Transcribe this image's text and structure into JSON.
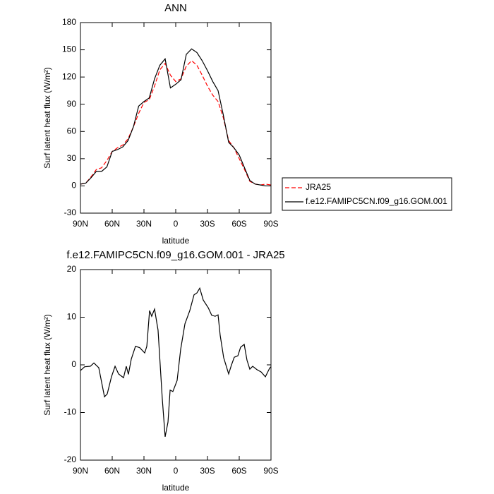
{
  "chart_data": [
    {
      "type": "line",
      "title": "ANN",
      "x_label": "latitude",
      "y_label": "Surf latent heat flux (W/m²)",
      "x": [
        90,
        85,
        80,
        75,
        70,
        65,
        60,
        55,
        50,
        45,
        40,
        35,
        30,
        25,
        20,
        15,
        10,
        5,
        0,
        -5,
        -10,
        -15,
        -20,
        -25,
        -30,
        -35,
        -40,
        -45,
        -50,
        -55,
        -60,
        -65,
        -70,
        -75,
        -80,
        -85,
        -90
      ],
      "series": [
        {
          "name": "JRA25",
          "color": "#ff0000",
          "line_style": "dashed",
          "values": [
            2,
            3,
            10,
            18,
            20,
            28,
            38,
            42,
            45,
            52,
            65,
            80,
            92,
            95,
            110,
            128,
            135,
            122,
            115,
            118,
            132,
            138,
            133,
            122,
            110,
            100,
            93,
            75,
            50,
            42,
            30,
            18,
            5,
            2,
            1,
            2,
            1
          ]
        },
        {
          "name": "f.e12.FAMIPC5CN.f09_g16.GOM.001",
          "color": "#000000",
          "line_style": "solid",
          "values": [
            2,
            3,
            9,
            16,
            16,
            21,
            38,
            40,
            43,
            50,
            65,
            88,
            93,
            97,
            118,
            133,
            140,
            108,
            112,
            117,
            145,
            151,
            147,
            138,
            127,
            115,
            105,
            78,
            48,
            42,
            34,
            20,
            6,
            2,
            1,
            0,
            0
          ]
        }
      ],
      "xlim": [
        90,
        -90
      ],
      "xticks": [
        {
          "value": 90,
          "label": "90N"
        },
        {
          "value": 60,
          "label": "60N"
        },
        {
          "value": 30,
          "label": "30N"
        },
        0,
        {
          "value": -30,
          "label": "30S"
        },
        {
          "value": -60,
          "label": "60S"
        },
        {
          "value": -90,
          "label": "90S"
        }
      ],
      "ylim": [
        -30,
        180
      ],
      "yticks": [
        -30,
        0,
        30,
        60,
        90,
        120,
        150,
        180
      ]
    },
    {
      "type": "line",
      "title": "f.e12.FAMIPC5CN.f09_g16.GOM.001 - JRA25",
      "x_label": "latitude",
      "y_label": "Surf latent heat flux (W/m²)",
      "x": [
        90,
        86,
        80.7,
        77.3,
        72.7,
        67.3,
        64.7,
        60.7,
        57.3,
        54,
        49.3,
        46.7,
        44.7,
        42,
        38,
        34,
        29.3,
        27.3,
        24.7,
        22.7,
        20,
        16.7,
        12.7,
        10,
        7.3,
        5.3,
        2.7,
        -1.3,
        -4.7,
        -8.7,
        -13.3,
        -17.3,
        -20,
        -22.7,
        -26,
        -30.7,
        -34,
        -37.3,
        -40,
        -42,
        -45.3,
        -50,
        -52.7,
        -55.3,
        -58.7,
        -61.3,
        -64.7,
        -67.3,
        -70,
        -72.7,
        -76.7,
        -80.7,
        -84.7,
        -88.7,
        -90
      ],
      "series": [
        {
          "color": "#000000",
          "line_style": "solid",
          "values": [
            -1.2,
            -0.4,
            -0.3,
            0.4,
            -0.6,
            -6.7,
            -6.1,
            -2.5,
            -0.3,
            -1.9,
            -2.7,
            -0.3,
            -2,
            1.2,
            3.9,
            3.6,
            2.5,
            3.9,
            11.4,
            10.2,
            11.7,
            7.3,
            -7.1,
            -15.1,
            -12,
            -5.3,
            -5.6,
            -3.3,
            3.3,
            8.6,
            11.4,
            14.7,
            15.1,
            16.1,
            13.6,
            12,
            10.4,
            10.2,
            10.5,
            6.2,
            1.5,
            -1.9,
            0,
            1.6,
            1.9,
            3.7,
            4.3,
            1,
            -0.9,
            -0.3,
            -1,
            -1.5,
            -2.5,
            -0.7,
            -0.4
          ]
        }
      ],
      "xlim": [
        90,
        -90
      ],
      "xticks": [
        {
          "value": 90,
          "label": "90N"
        },
        {
          "value": 60,
          "label": "60N"
        },
        {
          "value": 30,
          "label": "30N"
        },
        0,
        {
          "value": -30,
          "label": "30S"
        },
        {
          "value": -60,
          "label": "60S"
        },
        {
          "value": -90,
          "label": "90S"
        }
      ],
      "ylim": [
        -20,
        20
      ],
      "yticks": [
        -20,
        -10,
        0,
        10,
        20
      ]
    }
  ]
}
